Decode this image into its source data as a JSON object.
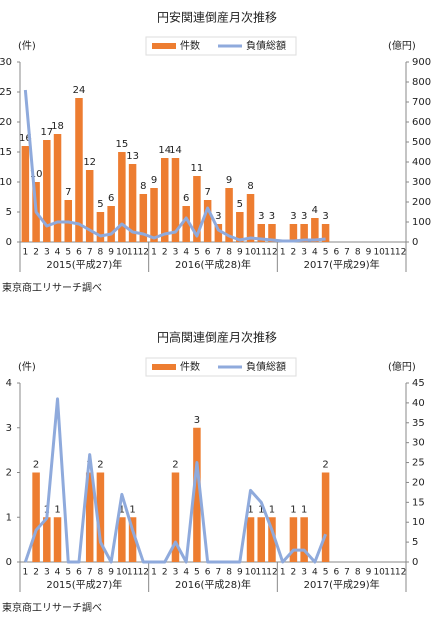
{
  "chart_data": [
    {
      "type": "combo",
      "title": "円安関連倒産月次推移",
      "y_label": "(件)",
      "y2_label": "(億円)",
      "categories": [
        "1",
        "2",
        "3",
        "4",
        "5",
        "6",
        "7",
        "8",
        "9",
        "10",
        "11",
        "12",
        "1",
        "2",
        "3",
        "4",
        "5",
        "6",
        "7",
        "8",
        "9",
        "10",
        "11",
        "12",
        "1",
        "2",
        "3",
        "4",
        "5",
        "6",
        "7",
        "8",
        "9",
        "10",
        "11",
        "12"
      ],
      "groups": [
        "2015(平成27)年",
        "2016(平成28)年",
        "2017(平成29)年"
      ],
      "ylim": [
        0,
        30
      ],
      "yticks": [
        0,
        5,
        10,
        15,
        20,
        25,
        30
      ],
      "y2lim": [
        0,
        900
      ],
      "y2ticks": [
        0,
        100,
        200,
        300,
        400,
        500,
        600,
        700,
        800,
        900
      ],
      "series": [
        {
          "name": "件数",
          "type": "bar",
          "color": "#ed7d31",
          "values": [
            16,
            10,
            17,
            18,
            7,
            24,
            12,
            5,
            6,
            15,
            13,
            8,
            9,
            14,
            14,
            6,
            11,
            7,
            3,
            9,
            5,
            8,
            3,
            3,
            0,
            3,
            3,
            4,
            3,
            null,
            null,
            null,
            null,
            null,
            null,
            null
          ]
        },
        {
          "name": "負債総額",
          "type": "line",
          "axis": "y2",
          "color": "#8faadc",
          "values": [
            760,
            150,
            80,
            100,
            100,
            90,
            60,
            30,
            40,
            90,
            50,
            40,
            20,
            40,
            50,
            120,
            30,
            170,
            60,
            30,
            10,
            20,
            15,
            10,
            5,
            5,
            10,
            10,
            15,
            null,
            null,
            null,
            null,
            null,
            null,
            null
          ]
        }
      ],
      "source": "東京商工リサーチ調べ"
    },
    {
      "type": "combo",
      "title": "円高関連倒産月次推移",
      "y_label": "(件)",
      "y2_label": "(億円)",
      "categories": [
        "1",
        "2",
        "3",
        "4",
        "5",
        "6",
        "7",
        "8",
        "9",
        "10",
        "11",
        "12",
        "1",
        "2",
        "3",
        "4",
        "5",
        "6",
        "7",
        "8",
        "9",
        "10",
        "11",
        "12",
        "1",
        "2",
        "3",
        "4",
        "5",
        "6",
        "7",
        "8",
        "9",
        "10",
        "11",
        "12"
      ],
      "groups": [
        "2015(平成27)年",
        "2016(平成28)年",
        "2017(平成29)年"
      ],
      "ylim": [
        0,
        4
      ],
      "yticks": [
        0,
        1,
        2,
        3,
        4
      ],
      "y2lim": [
        0,
        45
      ],
      "y2ticks": [
        0,
        5,
        10,
        15,
        20,
        25,
        30,
        35,
        40,
        45
      ],
      "series": [
        {
          "name": "件数",
          "type": "bar",
          "color": "#ed7d31",
          "values": [
            0,
            2,
            1,
            1,
            0,
            0,
            2,
            2,
            0,
            1,
            1,
            0,
            0,
            0,
            2,
            0,
            3,
            0,
            0,
            0,
            0,
            1,
            1,
            1,
            0,
            1,
            1,
            0,
            2,
            null,
            null,
            null,
            null,
            null,
            null,
            null
          ]
        },
        {
          "name": "負債総額",
          "type": "line",
          "axis": "y2",
          "color": "#8faadc",
          "values": [
            0,
            8,
            11,
            41,
            0,
            0,
            27,
            5,
            0,
            17,
            8,
            0,
            0,
            0,
            5,
            0,
            25,
            0,
            0,
            0,
            0,
            18,
            15,
            8,
            0,
            3,
            3,
            0,
            7,
            null,
            null,
            null,
            null,
            null,
            null,
            null
          ]
        }
      ],
      "source": "東京商工リサーチ調べ"
    }
  ]
}
